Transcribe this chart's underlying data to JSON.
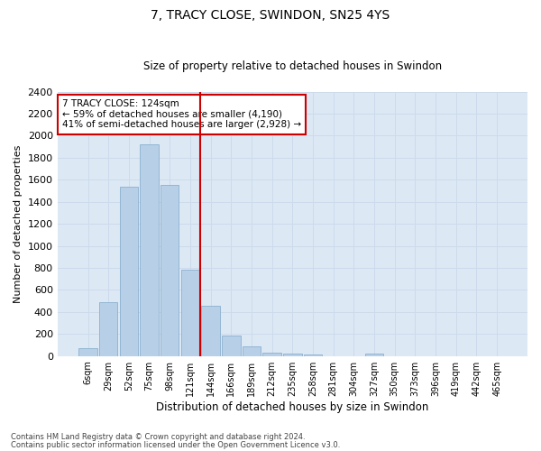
{
  "title": "7, TRACY CLOSE, SWINDON, SN25 4YS",
  "subtitle": "Size of property relative to detached houses in Swindon",
  "xlabel": "Distribution of detached houses by size in Swindon",
  "ylabel": "Number of detached properties",
  "categories": [
    "6sqm",
    "29sqm",
    "52sqm",
    "75sqm",
    "98sqm",
    "121sqm",
    "144sqm",
    "166sqm",
    "189sqm",
    "212sqm",
    "235sqm",
    "258sqm",
    "281sqm",
    "304sqm",
    "327sqm",
    "350sqm",
    "373sqm",
    "396sqm",
    "419sqm",
    "442sqm",
    "465sqm"
  ],
  "values": [
    75,
    490,
    1540,
    1920,
    1550,
    780,
    460,
    185,
    85,
    30,
    20,
    15,
    0,
    0,
    25,
    0,
    0,
    0,
    0,
    0,
    0
  ],
  "bar_color": "#b8cfe8",
  "bar_edgecolor": "#8ab0d0",
  "vline_color": "#cc0000",
  "annotation_text": "7 TRACY CLOSE: 124sqm\n← 59% of detached houses are smaller (4,190)\n41% of semi-detached houses are larger (2,928) →",
  "annotation_box_facecolor": "#ffffff",
  "annotation_box_edgecolor": "#cc0000",
  "ylim": [
    0,
    2400
  ],
  "yticks": [
    0,
    200,
    400,
    600,
    800,
    1000,
    1200,
    1400,
    1600,
    1800,
    2000,
    2200,
    2400
  ],
  "grid_color": "#ccdaeb",
  "plot_bg_color": "#dde8f5",
  "fig_bg_color": "#ffffff",
  "footer1": "Contains HM Land Registry data © Crown copyright and database right 2024.",
  "footer2": "Contains public sector information licensed under the Open Government Licence v3.0."
}
